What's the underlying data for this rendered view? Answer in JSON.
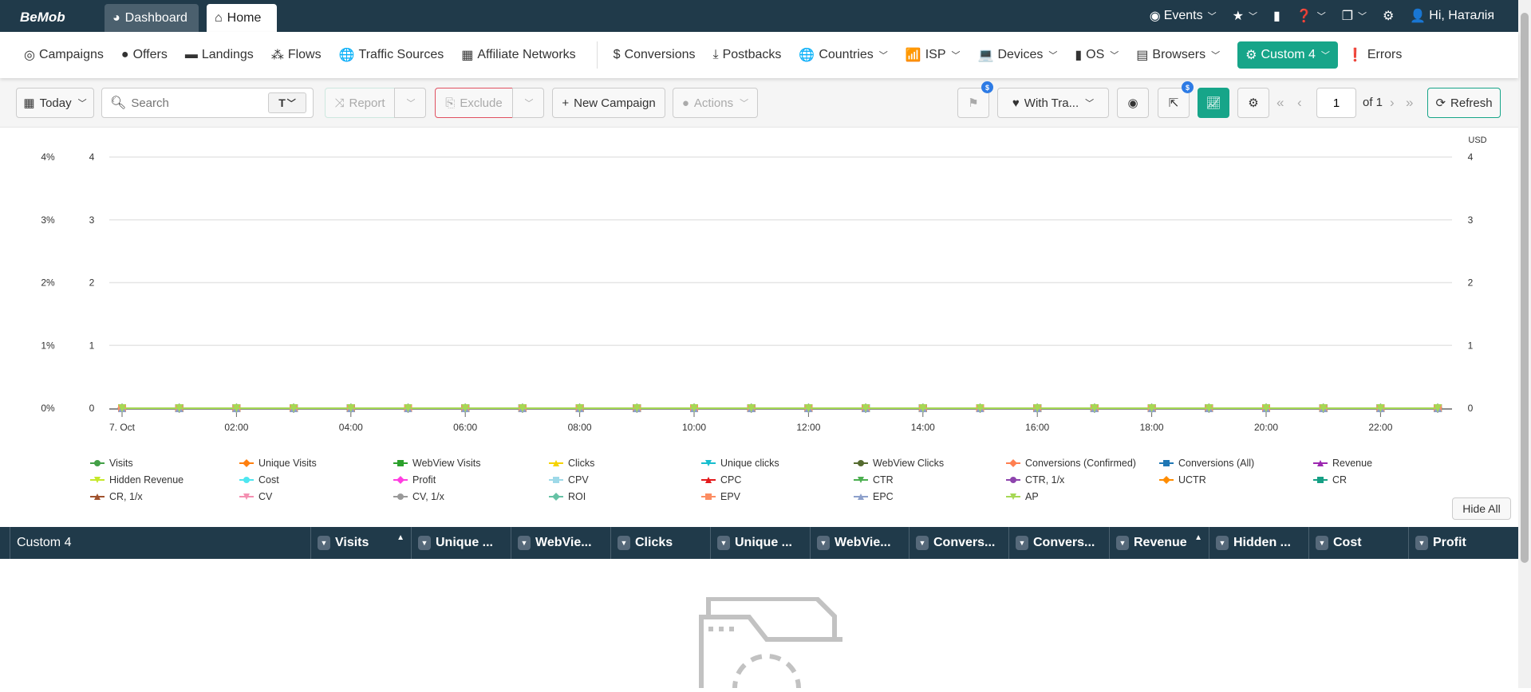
{
  "topbar": {
    "logo": "BeMob",
    "tabs": [
      {
        "label": "Dashboard"
      },
      {
        "label": "Home"
      }
    ],
    "events": "Events",
    "user": "Hi, Наталія"
  },
  "nav": {
    "items": [
      {
        "label": "Campaigns",
        "icon": "target-icon"
      },
      {
        "label": "Offers",
        "icon": "dollar-badge-icon"
      },
      {
        "label": "Landings",
        "icon": "landing-icon"
      },
      {
        "label": "Flows",
        "icon": "sitemap-icon"
      },
      {
        "label": "Traffic Sources",
        "icon": "globe-icon"
      },
      {
        "label": "Affiliate Networks",
        "icon": "network-icon"
      }
    ],
    "items2": [
      {
        "label": "Conversions",
        "icon": "dollar-icon"
      },
      {
        "label": "Postbacks",
        "icon": "download-icon"
      },
      {
        "label": "Countries",
        "icon": "globe-icon",
        "dropdown": true
      },
      {
        "label": "ISP",
        "icon": "wifi-icon",
        "dropdown": true
      },
      {
        "label": "Devices",
        "icon": "laptop-icon",
        "dropdown": true
      },
      {
        "label": "OS",
        "icon": "mobile-icon",
        "dropdown": true
      },
      {
        "label": "Browsers",
        "icon": "browser-icon",
        "dropdown": true
      },
      {
        "label": "Custom 4",
        "icon": "cogs-icon",
        "dropdown": true,
        "active": true
      },
      {
        "label": "Errors",
        "icon": "exclamation-icon"
      }
    ]
  },
  "toolbar": {
    "date": "Today",
    "search_placeholder": "Search",
    "search_type": "T",
    "report": "Report",
    "exclude": "Exclude",
    "new_campaign": "New Campaign",
    "actions": "Actions",
    "traffic_filter": "With Tra...",
    "page": "1",
    "of": "of 1",
    "refresh": "Refresh",
    "badge": "$"
  },
  "colors": {
    "topbar": "#203a4a",
    "accent": "#17a589",
    "exclude_border": "#e05060"
  },
  "chart_data": {
    "type": "line",
    "x": [
      "00:00",
      "01:00",
      "02:00",
      "03:00",
      "04:00",
      "05:00",
      "06:00",
      "07:00",
      "08:00",
      "09:00",
      "10:00",
      "11:00",
      "12:00",
      "13:00",
      "14:00",
      "15:00",
      "16:00",
      "17:00",
      "18:00",
      "19:00",
      "20:00",
      "21:00",
      "22:00",
      "23:00"
    ],
    "x_tick_labels": [
      "7. Oct",
      "02:00",
      "04:00",
      "06:00",
      "08:00",
      "10:00",
      "12:00",
      "14:00",
      "16:00",
      "18:00",
      "20:00",
      "22:00"
    ],
    "y_left_pct_ticks": [
      "0%",
      "1%",
      "2%",
      "3%",
      "4%"
    ],
    "y_left_ticks": [
      "0",
      "1",
      "2",
      "3",
      "4"
    ],
    "y_right_ticks": [
      "0",
      "1",
      "2",
      "3",
      "4"
    ],
    "y_right_unit": "USD",
    "ylim": [
      0,
      4
    ],
    "grid": true,
    "legend_position": "bottom",
    "series": [
      {
        "name": "Visits",
        "color": "#43a047",
        "marker": "circle"
      },
      {
        "name": "Unique Visits",
        "color": "#ff7f0e",
        "marker": "diamond"
      },
      {
        "name": "WebView Visits",
        "color": "#2ca02c",
        "marker": "square"
      },
      {
        "name": "Clicks",
        "color": "#f5d300",
        "marker": "triangle"
      },
      {
        "name": "Unique clicks",
        "color": "#17becf",
        "marker": "triangle-down"
      },
      {
        "name": "WebView Clicks",
        "color": "#556b2f",
        "marker": "circle"
      },
      {
        "name": "Conversions (Confirmed)",
        "color": "#ff7f50",
        "marker": "diamond"
      },
      {
        "name": "Conversions (All)",
        "color": "#1f77b4",
        "marker": "square"
      },
      {
        "name": "Revenue",
        "color": "#9c27b0",
        "marker": "triangle"
      },
      {
        "name": "Hidden Revenue",
        "color": "#c6e82a",
        "marker": "triangle-down"
      },
      {
        "name": "Cost",
        "color": "#4ee6f0",
        "marker": "circle"
      },
      {
        "name": "Profit",
        "color": "#ff3de0",
        "marker": "diamond"
      },
      {
        "name": "CPV",
        "color": "#9ed9e8",
        "marker": "square"
      },
      {
        "name": "CPC",
        "color": "#e31a1c",
        "marker": "triangle"
      },
      {
        "name": "CTR",
        "color": "#4caf50",
        "marker": "triangle-down"
      },
      {
        "name": "CTR, 1/x",
        "color": "#8e44ad",
        "marker": "circle"
      },
      {
        "name": "UCTR",
        "color": "#ff8c00",
        "marker": "diamond"
      },
      {
        "name": "CR",
        "color": "#16a085",
        "marker": "square"
      },
      {
        "name": "CR, 1/x",
        "color": "#a0522d",
        "marker": "triangle"
      },
      {
        "name": "CV",
        "color": "#f48fb1",
        "marker": "triangle-down"
      },
      {
        "name": "CV, 1/x",
        "color": "#999999",
        "marker": "circle"
      },
      {
        "name": "ROI",
        "color": "#66c2a5",
        "marker": "diamond"
      },
      {
        "name": "EPV",
        "color": "#fc8d62",
        "marker": "square"
      },
      {
        "name": "EPC",
        "color": "#8da0cb",
        "marker": "triangle"
      },
      {
        "name": "AP",
        "color": "#a6d854",
        "marker": "triangle-down"
      }
    ],
    "values": [
      0,
      0,
      0,
      0,
      0,
      0,
      0,
      0,
      0,
      0,
      0,
      0,
      0,
      0,
      0,
      0,
      0,
      0,
      0,
      0,
      0,
      0,
      0,
      0
    ]
  },
  "hide_all": "Hide All",
  "table": {
    "columns": [
      {
        "label": "Custom 4"
      },
      {
        "label": "Visits",
        "sort": "asc"
      },
      {
        "label": "Unique ..."
      },
      {
        "label": "WebVie..."
      },
      {
        "label": "Clicks"
      },
      {
        "label": "Unique ..."
      },
      {
        "label": "WebVie..."
      },
      {
        "label": "Convers..."
      },
      {
        "label": "Convers..."
      },
      {
        "label": "Revenue",
        "sort": "asc"
      },
      {
        "label": "Hidden ..."
      },
      {
        "label": "Cost"
      },
      {
        "label": "Profit"
      }
    ]
  }
}
